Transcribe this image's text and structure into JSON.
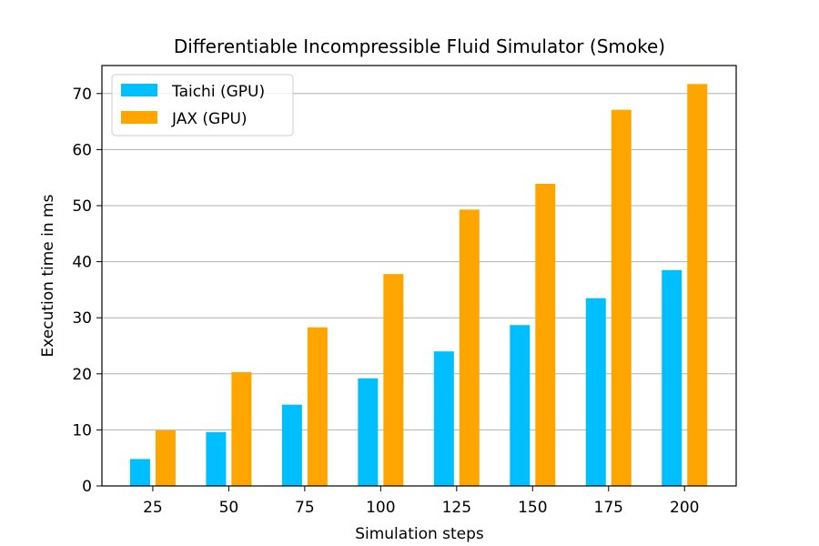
{
  "chart_data": {
    "type": "bar",
    "title": "Differentiable Incompressible Fluid Simulator (Smoke)",
    "xlabel": "Simulation steps",
    "ylabel": "Execution time in ms",
    "categories": [
      "25",
      "50",
      "75",
      "100",
      "125",
      "150",
      "175",
      "200"
    ],
    "series": [
      {
        "name": "Taichi (GPU)",
        "color": "#00bfff",
        "values": [
          4.8,
          9.6,
          14.5,
          19.2,
          24.0,
          28.7,
          33.5,
          38.5
        ]
      },
      {
        "name": "JAX (GPU)",
        "color": "#ffa500",
        "values": [
          9.9,
          20.3,
          28.3,
          37.8,
          49.3,
          53.9,
          67.1,
          71.7
        ]
      }
    ],
    "ylim": [
      0,
      75
    ],
    "yticks": [
      0,
      10,
      20,
      30,
      40,
      50,
      60,
      70
    ],
    "grid": "y",
    "legend_position": "top-left"
  }
}
